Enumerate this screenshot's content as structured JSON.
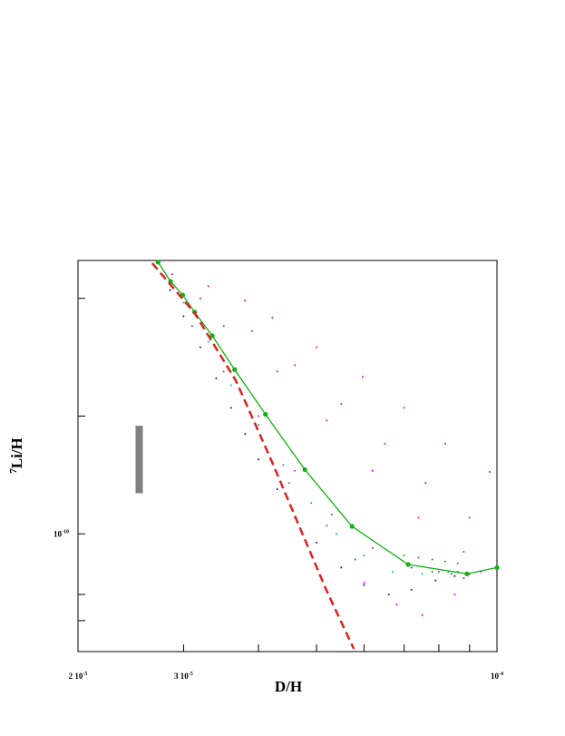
{
  "chart_data": {
    "type": "scatter",
    "xlabel": "D/H",
    "ylabel_isotope": "7",
    "ylabel": "Li/H",
    "xscale": "log",
    "yscale": "log",
    "xlim": [
      2e-05,
      0.0001
    ],
    "ylim": [
      5e-11,
      5e-10
    ],
    "xticks": [
      {
        "value": 2e-05,
        "label": "2 10",
        "label_exponent": "-5"
      },
      {
        "value": 3e-05,
        "label": "3 10",
        "label_exponent": "-5"
      },
      {
        "value": 0.0001,
        "label": "10",
        "label_exponent": "-4"
      }
    ],
    "xminor_ticks": [
      4e-05,
      5e-05,
      6e-05,
      7e-05,
      8e-05,
      9e-05
    ],
    "yticks": [
      {
        "value": 1e-10,
        "label": "10",
        "label_exponent": "-10"
      }
    ],
    "yminor_ticks": [
      6e-11,
      7e-11,
      2e-10,
      4e-10
    ],
    "observation": {
      "x": 2.53e-05,
      "ylow": 1.27e-10,
      "yhigh": 1.89e-10,
      "color": "#808080"
    },
    "series": [
      {
        "style": "points",
        "color": "#e000e0",
        "x": [
          2.87e-05,
          3.3e-05,
          3.8e-05,
          4.22e-05,
          5e-05,
          5.97e-05,
          7e-05,
          8.2e-05,
          9.72e-05,
          3.2e-05,
          3.9e-05,
          4.6e-05,
          5.5e-05,
          6.5e-05,
          7.6e-05,
          9e-05,
          3.5e-05,
          4.3e-05,
          5.2e-05,
          6.2e-05,
          7.4e-05,
          8.8e-05,
          6e-05,
          6.8e-05,
          7.5e-05,
          8.5e-05,
          9.4e-05
        ],
        "values": [
          4.61e-10,
          4.3e-10,
          3.95e-10,
          3.57e-10,
          3e-10,
          2.52e-10,
          2.1e-10,
          1.7e-10,
          1.44e-10,
          4e-10,
          3.3e-10,
          2.7e-10,
          2.15e-10,
          1.7e-10,
          1.35e-10,
          1.1e-10,
          3.4e-10,
          2.6e-10,
          1.95e-10,
          1.45e-10,
          1.1e-10,
          9e-11,
          7.5e-11,
          6.6e-11,
          6.2e-11,
          7e-11,
          8e-11
        ]
      },
      {
        "style": "points",
        "color": "#1010a0",
        "x": [
          2.85e-05,
          3e-05,
          3.2e-05,
          3.4e-05,
          3.6e-05,
          3.8e-05,
          4e-05,
          4.3e-05,
          4.6e-05,
          5e-05,
          5.5e-05,
          6e-05,
          6.6e-05,
          7.2e-05,
          7.9e-05,
          8.5e-05
        ],
        "values": [
          4.2e-10,
          3.6e-10,
          3e-10,
          2.5e-10,
          2.1e-10,
          1.8e-10,
          1.55e-10,
          1.3e-10,
          1.1e-10,
          9.5e-11,
          8.2e-11,
          7.4e-11,
          7e-11,
          7.2e-11,
          7.6e-11,
          7.8e-11
        ]
      },
      {
        "style": "points",
        "color": "#00b0c0",
        "x": [
          3e-05,
          3.3e-05,
          3.6e-05,
          4e-05,
          4.4e-05,
          4.9e-05,
          5.4e-05,
          6e-05,
          6.7e-05,
          7.5e-05,
          8.3e-05
        ],
        "values": [
          3.9e-10,
          3.1e-10,
          2.4e-10,
          1.9e-10,
          1.5e-10,
          1.2e-10,
          1e-10,
          8.8e-11,
          8e-11,
          7.9e-11,
          8e-11
        ]
      },
      {
        "style": "points",
        "color": "#10a010",
        "x": [
          7e-05,
          7.4e-05,
          7.8e-05,
          8.2e-05,
          8.6e-05,
          7.2e-05,
          7.8e-05,
          8.4e-05,
          4.5e-05,
          5.2e-05,
          5.8e-05
        ],
        "values": [
          8.8e-11,
          8.7e-11,
          8.6e-11,
          8.5e-11,
          8.4e-11,
          8.2e-11,
          8e-11,
          7.9e-11,
          1.35e-10,
          1.05e-10,
          8.6e-11
        ]
      },
      {
        "style": "points",
        "color": "#9030e0",
        "x": [
          3.1e-05,
          3.5e-05,
          4e-05,
          4.6e-05,
          5.3e-05,
          6.2e-05,
          7.2e-05,
          8e-05,
          8.6e-05,
          9e-05,
          8.8e-05
        ],
        "values": [
          3.4e-10,
          2.6e-10,
          2e-10,
          1.45e-10,
          1.12e-10,
          9.2e-11,
          8.2e-11,
          8e-11,
          8e-11,
          7.9e-11,
          7.7e-11
        ]
      },
      {
        "style": "line",
        "markers": true,
        "color": "#10b010",
        "x": [
          2.72e-05,
          2.854e-05,
          2.99e-05,
          3.13e-05,
          3.35e-05,
          3.65e-05,
          4.11e-05,
          4.78e-05,
          5.73e-05,
          7.11e-05,
          8.91e-05,
          0.0001
        ],
        "values": [
          4.95e-10,
          4.42e-10,
          4.08e-10,
          3.69e-10,
          3.21e-10,
          2.63e-10,
          2.02e-10,
          1.46e-10,
          1.045e-10,
          8.35e-11,
          7.9e-11,
          8.2e-11
        ]
      },
      {
        "style": "dashed",
        "color": "#e02020",
        "x": [
          2.66e-05,
          3.13e-05,
          3.67e-05,
          4.22e-05,
          4.68e-05,
          5.19e-05,
          5.77e-05
        ],
        "values": [
          4.92e-10,
          3.67e-10,
          2.46e-10,
          1.52e-10,
          1.045e-10,
          7.19e-11,
          5.08e-11
        ]
      }
    ]
  }
}
